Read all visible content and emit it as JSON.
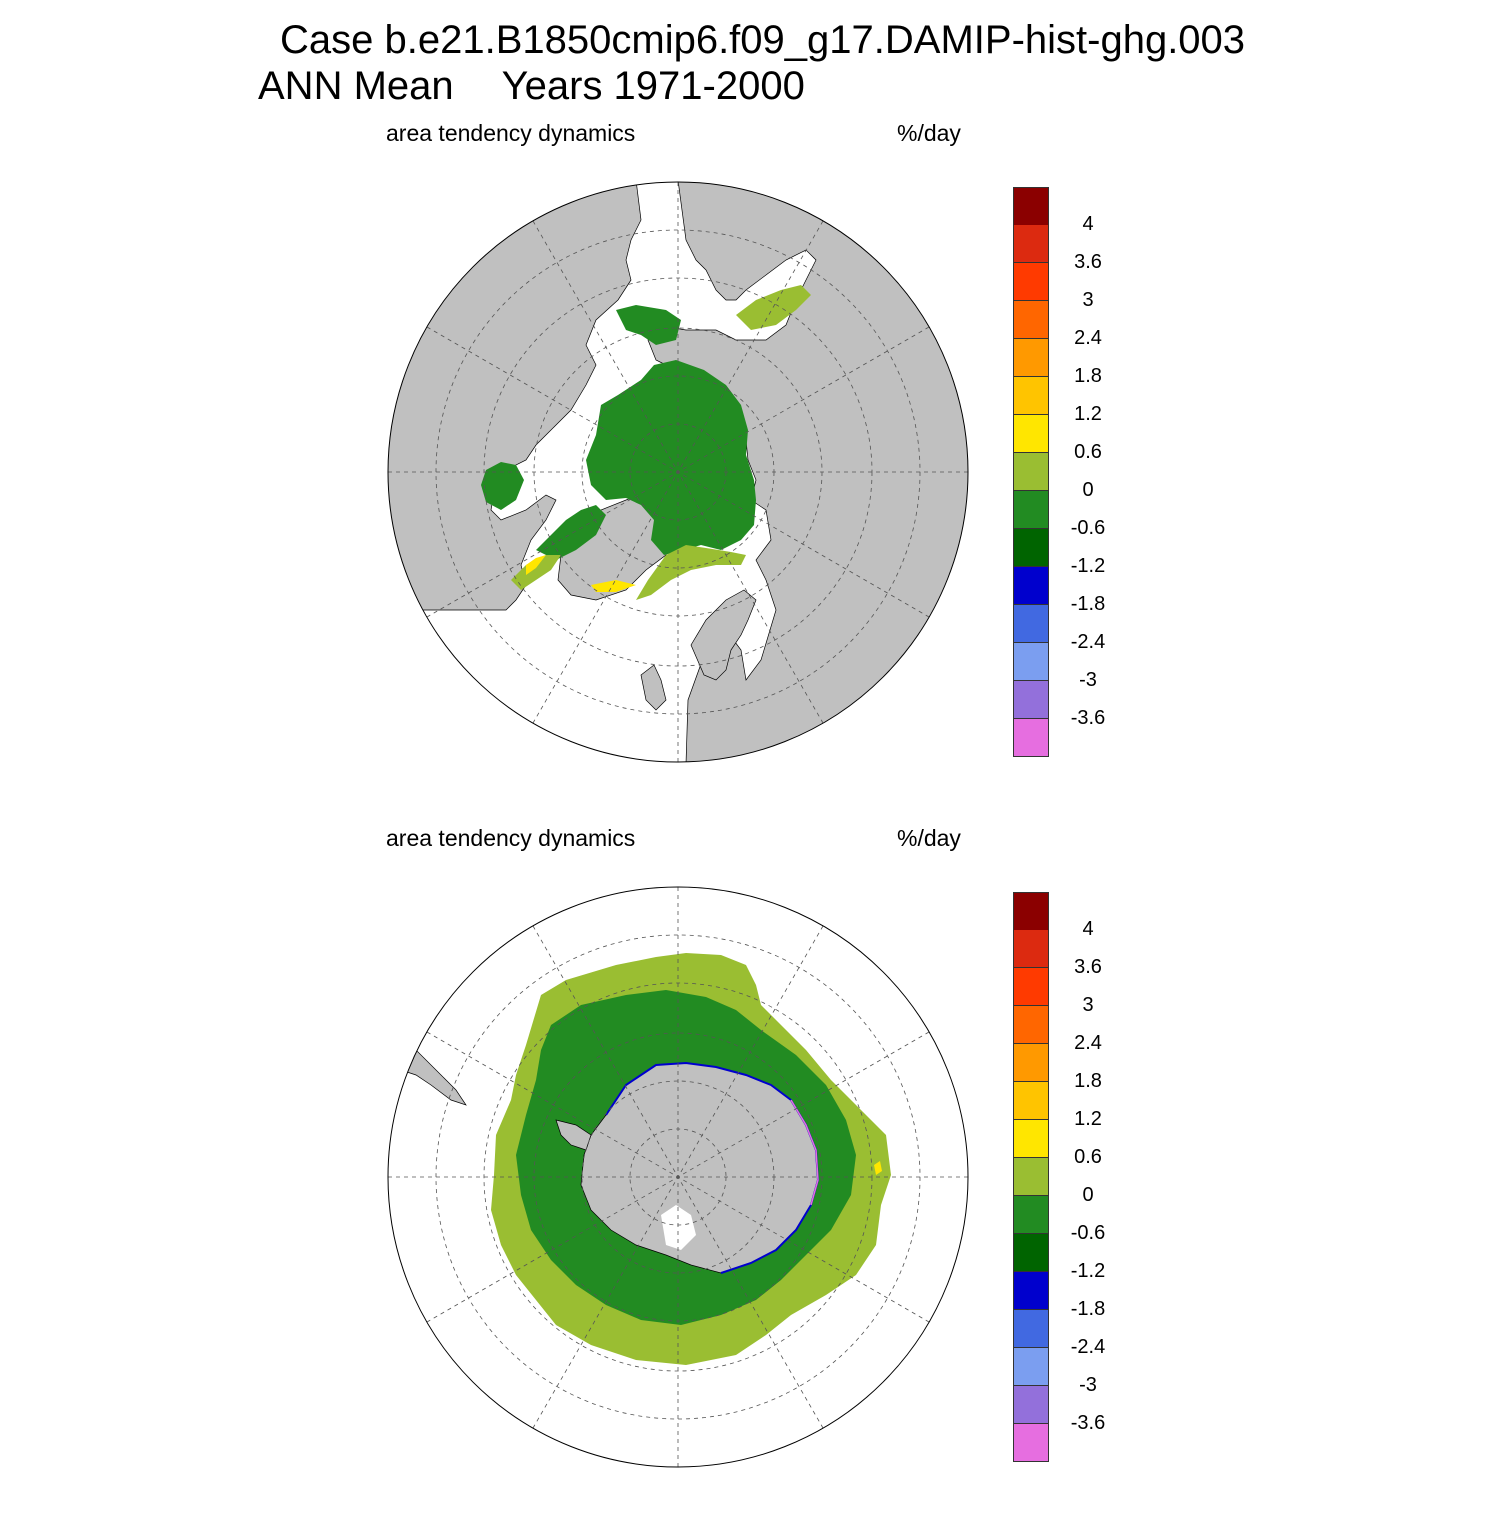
{
  "title": {
    "case": "Case b.e21.B1850cmip6.f09_g17.DAMIP-hist-ghg.003",
    "season": "ANN Mean",
    "years": "Years 1971-2000"
  },
  "colors": {
    "land": "#c0c0c0",
    "ocean": "#ffffff",
    "grid": "#555555"
  },
  "colorbar": {
    "colors": [
      "#8b0000",
      "#dc2a10",
      "#ff3a00",
      "#ff6600",
      "#ff9900",
      "#ffc400",
      "#ffe600",
      "#9abe32",
      "#228b22",
      "#006400",
      "#0000cd",
      "#4169e1",
      "#7b9ef0",
      "#9370db",
      "#e66ee0"
    ],
    "labels": [
      "4",
      "3.6",
      "3",
      "2.4",
      "1.8",
      "1.2",
      "0.6",
      "0",
      "-0.6",
      "-1.2",
      "-1.8",
      "-2.4",
      "-3",
      "-3.6"
    ]
  },
  "panels": [
    {
      "id": "north",
      "variable": "area tendency dynamics",
      "units": "%/day",
      "hemisphere": "Northern Hemisphere"
    },
    {
      "id": "south",
      "variable": "area tendency dynamics",
      "units": "%/day",
      "hemisphere": "Southern Hemisphere"
    }
  ]
}
